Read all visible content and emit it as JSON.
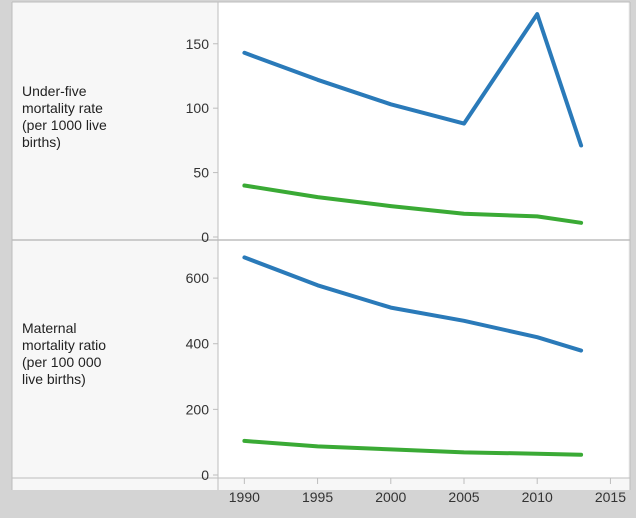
{
  "chart_data": [
    {
      "type": "line",
      "ylabel": "Under-five\nmortality rate\n(per 1000 live\nbirths)",
      "x": [
        1990,
        1995,
        2000,
        2005,
        2010,
        2013
      ],
      "series": [
        {
          "color": "#2a7ab9",
          "values": [
            143,
            122,
            103,
            88,
            173,
            71
          ]
        },
        {
          "color": "#3aaa35",
          "values": [
            40,
            31,
            24,
            18,
            16,
            11
          ]
        }
      ],
      "ylim": [
        0,
        170
      ],
      "yticks": [
        0,
        50,
        100,
        150
      ]
    },
    {
      "type": "line",
      "ylabel": "Maternal\nmortality ratio\n(per 100 000\nlive births)",
      "x": [
        1990,
        1995,
        2000,
        2005,
        2010,
        2013
      ],
      "series": [
        {
          "color": "#2a7ab9",
          "values": [
            663,
            578,
            510,
            470,
            420,
            379
          ]
        },
        {
          "color": "#3aaa35",
          "values": [
            104,
            87,
            78,
            69,
            65,
            62
          ]
        }
      ],
      "ylim": [
        0,
        710
      ],
      "yticks": [
        0,
        200,
        400,
        600
      ]
    }
  ],
  "xticks": [
    1990,
    1995,
    2000,
    2005,
    2010,
    2015
  ],
  "grid": false,
  "legend": "none"
}
